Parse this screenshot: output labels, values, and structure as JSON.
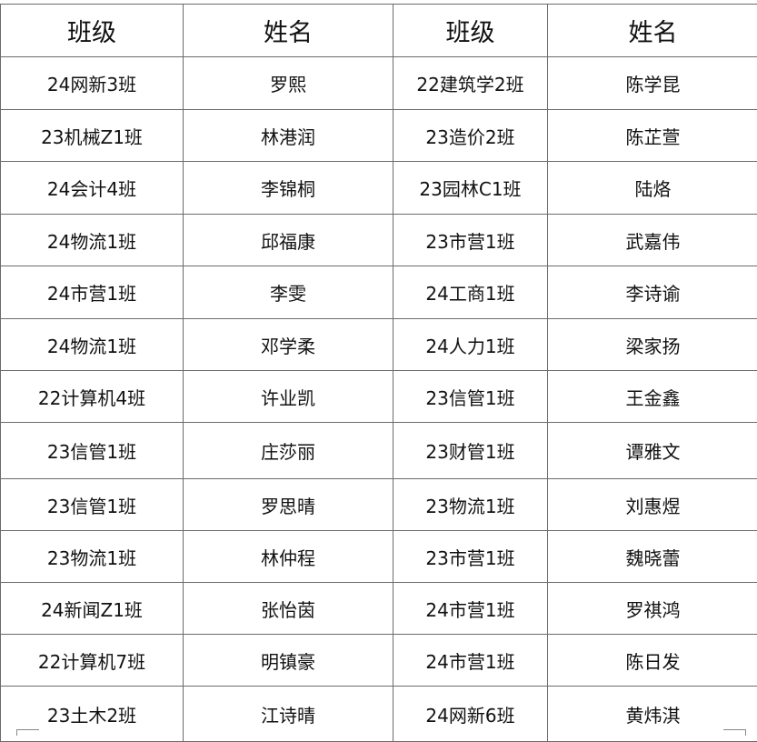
{
  "headers": [
    "班级",
    "姓名",
    "班级",
    "姓名"
  ],
  "rows": [
    [
      "24网新3班",
      "罗熙",
      "22建筑学2班",
      "陈学昆"
    ],
    [
      "23机械Z1班",
      "林港润",
      "23造价2班",
      "陈芷萱"
    ],
    [
      "24会计4班",
      "李锦桐",
      "23园林C1班",
      "陆烙"
    ],
    [
      "24物流1班",
      "邱福康",
      "23市营1班",
      "武嘉伟"
    ],
    [
      "24市营1班",
      "李雯",
      "24工商1班",
      "李诗谕"
    ],
    [
      "24物流1班",
      "邓学柔",
      "24人力1班",
      "梁家扬"
    ],
    [
      "22计算机4班",
      "许业凯",
      "23信管1班",
      "王金鑫"
    ],
    [
      "23信管1班",
      "庄莎丽",
      "23财管1班",
      "谭雅文"
    ],
    [
      "23信管1班",
      "罗思晴",
      "23物流1班",
      "刘惠煜"
    ],
    [
      "23物流1班",
      "林仲程",
      "23市营1班",
      "魏晓蕾"
    ],
    [
      "24新闻Z1班",
      "张怡茵",
      "24市营1班",
      "罗祺鸿"
    ],
    [
      "22计算机7班",
      "明镇豪",
      "24市营1班",
      "陈日发"
    ],
    [
      "23土木2班",
      "江诗晴",
      "24网新6班",
      "黄炜淇"
    ]
  ]
}
